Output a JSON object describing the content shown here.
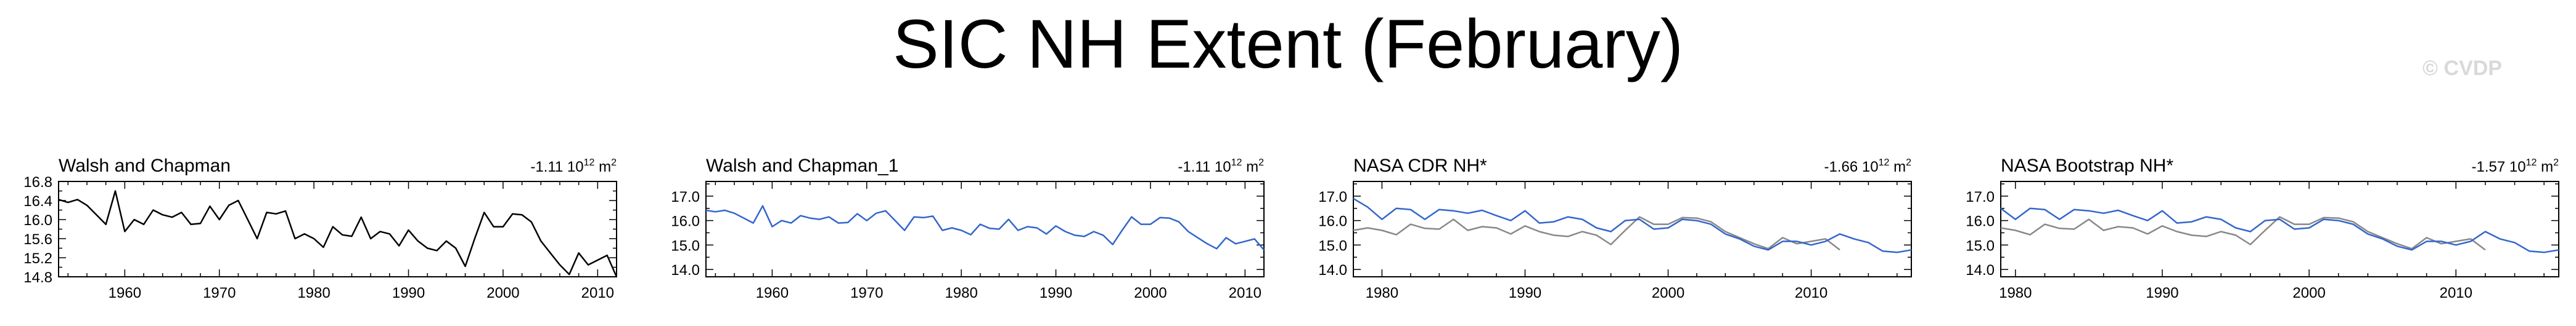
{
  "page_title": "SIC NH Extent (February)",
  "watermark": "© CVDP",
  "colors": {
    "obs_line": "#000000",
    "model_line": "#3366cc",
    "ref_line": "#888888"
  },
  "chart_data": [
    {
      "type": "line",
      "title": "Walsh and Chapman",
      "trend": "-1.11 10",
      "trend_exp": "12",
      "trend_unit": " m",
      "trend_unit_exp": "2",
      "xlim": [
        1953,
        2012
      ],
      "ylim": [
        14.8,
        16.8
      ],
      "xticks": [
        1960,
        1970,
        1980,
        1990,
        2000,
        2010
      ],
      "yticks": [
        "14.8",
        "15.2",
        "15.6",
        "16.0",
        "16.4",
        "16.8"
      ],
      "series": [
        {
          "color": "#000000",
          "x": [
            1953,
            1954,
            1955,
            1956,
            1957,
            1958,
            1959,
            1960,
            1961,
            1962,
            1963,
            1964,
            1965,
            1966,
            1967,
            1968,
            1969,
            1970,
            1971,
            1972,
            1973,
            1974,
            1975,
            1976,
            1977,
            1978,
            1979,
            1980,
            1981,
            1982,
            1983,
            1984,
            1985,
            1986,
            1987,
            1988,
            1989,
            1990,
            1991,
            1992,
            1993,
            1994,
            1995,
            1996,
            1997,
            1998,
            1999,
            2000,
            2001,
            2002,
            2003,
            2004,
            2005,
            2006,
            2007,
            2008,
            2009,
            2010,
            2011,
            2012
          ],
          "y": [
            16.42,
            16.36,
            16.42,
            16.3,
            16.1,
            15.9,
            16.6,
            15.75,
            16.0,
            15.9,
            16.2,
            16.1,
            16.05,
            16.15,
            15.9,
            15.92,
            16.28,
            16.0,
            16.3,
            16.4,
            16.0,
            15.6,
            16.15,
            16.12,
            16.18,
            15.6,
            15.7,
            15.6,
            15.42,
            15.85,
            15.68,
            15.65,
            16.05,
            15.6,
            15.75,
            15.7,
            15.45,
            15.78,
            15.55,
            15.4,
            15.35,
            15.55,
            15.4,
            15.02,
            15.6,
            16.15,
            15.85,
            15.85,
            16.12,
            16.1,
            15.95,
            15.55,
            15.3,
            15.05,
            14.85,
            15.3,
            15.05,
            15.15,
            15.25,
            14.8
          ]
        }
      ]
    },
    {
      "type": "line",
      "title": "Walsh and Chapman_1",
      "trend": "-1.11 10",
      "trend_exp": "12",
      "trend_unit": " m",
      "trend_unit_exp": "2",
      "xlim": [
        1953,
        2012
      ],
      "ylim": [
        13.7,
        17.6
      ],
      "xticks": [
        1960,
        1970,
        1980,
        1990,
        2000,
        2010
      ],
      "yticks": [
        "14.0",
        "15.0",
        "16.0",
        "17.0"
      ],
      "series": [
        {
          "color": "#3366cc",
          "x": [
            1953,
            1954,
            1955,
            1956,
            1957,
            1958,
            1959,
            1960,
            1961,
            1962,
            1963,
            1964,
            1965,
            1966,
            1967,
            1968,
            1969,
            1970,
            1971,
            1972,
            1973,
            1974,
            1975,
            1976,
            1977,
            1978,
            1979,
            1980,
            1981,
            1982,
            1983,
            1984,
            1985,
            1986,
            1987,
            1988,
            1989,
            1990,
            1991,
            1992,
            1993,
            1994,
            1995,
            1996,
            1997,
            1998,
            1999,
            2000,
            2001,
            2002,
            2003,
            2004,
            2005,
            2006,
            2007,
            2008,
            2009,
            2010,
            2011,
            2012
          ],
          "y": [
            16.42,
            16.36,
            16.42,
            16.3,
            16.1,
            15.9,
            16.6,
            15.75,
            16.0,
            15.9,
            16.2,
            16.1,
            16.05,
            16.15,
            15.9,
            15.92,
            16.28,
            16.0,
            16.3,
            16.4,
            16.0,
            15.6,
            16.15,
            16.12,
            16.18,
            15.6,
            15.7,
            15.6,
            15.42,
            15.85,
            15.68,
            15.65,
            16.05,
            15.6,
            15.75,
            15.7,
            15.45,
            15.78,
            15.55,
            15.4,
            15.35,
            15.55,
            15.4,
            15.02,
            15.6,
            16.15,
            15.85,
            15.85,
            16.12,
            16.1,
            15.95,
            15.55,
            15.3,
            15.05,
            14.85,
            15.3,
            15.05,
            15.15,
            15.25,
            14.8
          ]
        }
      ]
    },
    {
      "type": "line",
      "title": "NASA CDR NH*",
      "trend": "-1.66 10",
      "trend_exp": "12",
      "trend_unit": " m",
      "trend_unit_exp": "2",
      "xlim": [
        1978,
        2017
      ],
      "ylim": [
        13.7,
        17.6
      ],
      "xticks": [
        1980,
        1990,
        2000,
        2010
      ],
      "yticks": [
        "14.0",
        "15.0",
        "16.0",
        "17.0"
      ],
      "series": [
        {
          "color": "#888888",
          "x": [
            1978,
            1979,
            1980,
            1981,
            1982,
            1983,
            1984,
            1985,
            1986,
            1987,
            1988,
            1989,
            1990,
            1991,
            1992,
            1993,
            1994,
            1995,
            1996,
            1997,
            1998,
            1999,
            2000,
            2001,
            2002,
            2003,
            2004,
            2005,
            2006,
            2007,
            2008,
            2009,
            2010,
            2011,
            2012
          ],
          "y": [
            15.6,
            15.7,
            15.6,
            15.42,
            15.85,
            15.68,
            15.65,
            16.05,
            15.6,
            15.75,
            15.7,
            15.45,
            15.78,
            15.55,
            15.4,
            15.35,
            15.55,
            15.4,
            15.02,
            15.6,
            16.15,
            15.85,
            15.85,
            16.12,
            16.1,
            15.95,
            15.55,
            15.3,
            15.05,
            14.85,
            15.3,
            15.05,
            15.15,
            15.25,
            14.8
          ]
        },
        {
          "color": "#3366cc",
          "x": [
            1978,
            1979,
            1980,
            1981,
            1982,
            1983,
            1984,
            1985,
            1986,
            1987,
            1988,
            1989,
            1990,
            1991,
            1992,
            1993,
            1994,
            1995,
            1996,
            1997,
            1998,
            1999,
            2000,
            2001,
            2002,
            2003,
            2004,
            2005,
            2006,
            2007,
            2008,
            2009,
            2010,
            2011,
            2012,
            2013,
            2014,
            2015,
            2016,
            2017
          ],
          "y": [
            16.9,
            16.55,
            16.05,
            16.5,
            16.45,
            16.05,
            16.45,
            16.4,
            16.3,
            16.42,
            16.2,
            16.0,
            16.4,
            15.9,
            15.95,
            16.15,
            16.05,
            15.7,
            15.55,
            16.0,
            16.05,
            15.65,
            15.7,
            16.05,
            16.0,
            15.85,
            15.45,
            15.25,
            14.95,
            14.8,
            15.15,
            15.15,
            15.0,
            15.15,
            15.45,
            15.25,
            15.1,
            14.75,
            14.7,
            14.8
          ]
        }
      ]
    },
    {
      "type": "line",
      "title": "NASA Bootstrap NH*",
      "trend": "-1.57 10",
      "trend_exp": "12",
      "trend_unit": " m",
      "trend_unit_exp": "2",
      "xlim": [
        1979,
        2017
      ],
      "ylim": [
        13.7,
        17.6
      ],
      "xticks": [
        1980,
        1990,
        2000,
        2010
      ],
      "yticks": [
        "14.0",
        "15.0",
        "16.0",
        "17.0"
      ],
      "series": [
        {
          "color": "#888888",
          "x": [
            1979,
            1980,
            1981,
            1982,
            1983,
            1984,
            1985,
            1986,
            1987,
            1988,
            1989,
            1990,
            1991,
            1992,
            1993,
            1994,
            1995,
            1996,
            1997,
            1998,
            1999,
            2000,
            2001,
            2002,
            2003,
            2004,
            2005,
            2006,
            2007,
            2008,
            2009,
            2010,
            2011,
            2012
          ],
          "y": [
            15.7,
            15.6,
            15.42,
            15.85,
            15.68,
            15.65,
            16.05,
            15.6,
            15.75,
            15.7,
            15.45,
            15.78,
            15.55,
            15.4,
            15.35,
            15.55,
            15.4,
            15.02,
            15.6,
            16.15,
            15.85,
            15.85,
            16.12,
            16.1,
            15.95,
            15.55,
            15.3,
            15.05,
            14.85,
            15.3,
            15.05,
            15.15,
            15.25,
            14.8
          ]
        },
        {
          "color": "#3366cc",
          "x": [
            1979,
            1980,
            1981,
            1982,
            1983,
            1984,
            1985,
            1986,
            1987,
            1988,
            1989,
            1990,
            1991,
            1992,
            1993,
            1994,
            1995,
            1996,
            1997,
            1998,
            1999,
            2000,
            2001,
            2002,
            2003,
            2004,
            2005,
            2006,
            2007,
            2008,
            2009,
            2010,
            2011,
            2012,
            2013,
            2014,
            2015,
            2016,
            2017
          ],
          "y": [
            16.5,
            16.05,
            16.5,
            16.45,
            16.05,
            16.45,
            16.4,
            16.3,
            16.42,
            16.2,
            16.0,
            16.4,
            15.9,
            15.95,
            16.15,
            16.05,
            15.7,
            15.55,
            16.0,
            16.05,
            15.65,
            15.7,
            16.05,
            16.0,
            15.85,
            15.45,
            15.25,
            14.95,
            14.8,
            15.15,
            15.15,
            15.0,
            15.15,
            15.55,
            15.25,
            15.1,
            14.75,
            14.7,
            14.8
          ]
        }
      ]
    }
  ]
}
